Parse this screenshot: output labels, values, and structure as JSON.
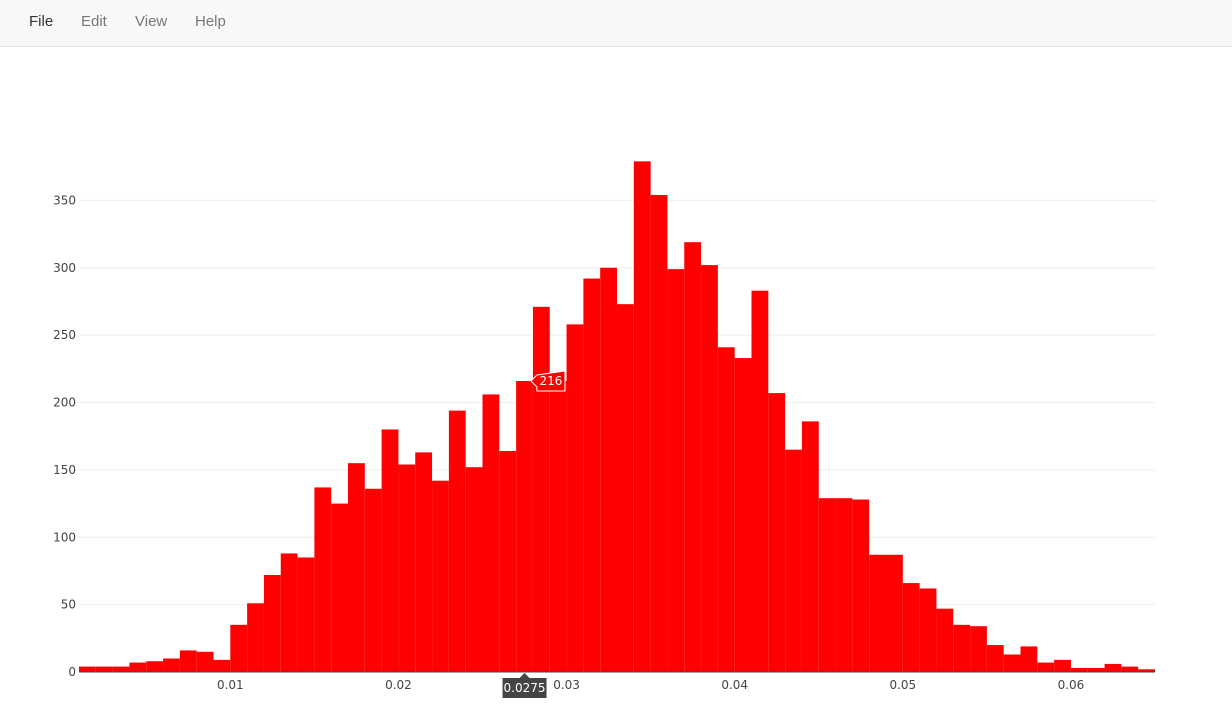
{
  "menu": {
    "items": [
      {
        "label": "File",
        "active": true
      },
      {
        "label": "Edit",
        "active": false
      },
      {
        "label": "View",
        "active": false
      },
      {
        "label": "Help",
        "active": false
      }
    ]
  },
  "colors": {
    "bar": "#ff0000",
    "grid": "#eeeeee",
    "axis_line": "#444444",
    "tick_text": "#444444",
    "hover_x_bg": "#444444",
    "hover_x_text": "#ffffff",
    "hover_y_border": "#ffffff",
    "hover_y_text": "#ffffff",
    "menubar_bg": "#f8f8f8"
  },
  "chart_data": {
    "type": "bar",
    "title": "",
    "xlabel": "",
    "ylabel": "",
    "grid": true,
    "legend": "none",
    "bin_width": 0.001,
    "x_range": [
      0.001,
      0.065
    ],
    "ylim": [
      0,
      380
    ],
    "x_ticks": [
      {
        "value": 0.01,
        "label": "0.01"
      },
      {
        "value": 0.02,
        "label": "0.02"
      },
      {
        "value": 0.03,
        "label": "0.03"
      },
      {
        "value": 0.04,
        "label": "0.04"
      },
      {
        "value": 0.05,
        "label": "0.05"
      },
      {
        "value": 0.06,
        "label": "0.06"
      }
    ],
    "y_ticks": [
      {
        "value": 0,
        "label": "0"
      },
      {
        "value": 50,
        "label": "50"
      },
      {
        "value": 100,
        "label": "100"
      },
      {
        "value": 150,
        "label": "150"
      },
      {
        "value": 200,
        "label": "200"
      },
      {
        "value": 250,
        "label": "250"
      },
      {
        "value": 300,
        "label": "300"
      },
      {
        "value": 350,
        "label": "350"
      }
    ],
    "series": [
      {
        "x": [
          0.0015,
          0.0025,
          0.0035,
          0.0045,
          0.0055,
          0.0065,
          0.0075,
          0.0085,
          0.0095,
          0.0105,
          0.0115,
          0.0125,
          0.0135,
          0.0145,
          0.0155,
          0.0165,
          0.0175,
          0.0185,
          0.0195,
          0.0205,
          0.0215,
          0.0225,
          0.0235,
          0.0245,
          0.0255,
          0.0265,
          0.0275,
          0.0285,
          0.0295,
          0.0305,
          0.0315,
          0.0325,
          0.0335,
          0.0345,
          0.0355,
          0.0365,
          0.0375,
          0.0385,
          0.0395,
          0.0405,
          0.0415,
          0.0425,
          0.0435,
          0.0445,
          0.0455,
          0.0465,
          0.0475,
          0.0485,
          0.0495,
          0.0505,
          0.0515,
          0.0525,
          0.0535,
          0.0545,
          0.0555,
          0.0565,
          0.0575,
          0.0585,
          0.0595,
          0.0605,
          0.0615,
          0.0625,
          0.0635,
          0.0645
        ],
        "values": [
          4,
          4,
          4,
          7,
          8,
          10,
          16,
          15,
          9,
          35,
          51,
          72,
          88,
          85,
          137,
          125,
          155,
          136,
          180,
          154,
          163,
          142,
          194,
          152,
          206,
          164,
          216,
          271,
          216,
          258,
          292,
          300,
          273,
          379,
          354,
          299,
          319,
          302,
          241,
          233,
          283,
          207,
          165,
          186,
          129,
          129,
          128,
          87,
          87,
          66,
          62,
          47,
          35,
          34,
          20,
          13,
          19,
          7,
          9,
          3,
          3,
          6,
          4,
          2
        ]
      }
    ],
    "hover": {
      "x_label": "0.0275",
      "y_label": "216"
    }
  }
}
